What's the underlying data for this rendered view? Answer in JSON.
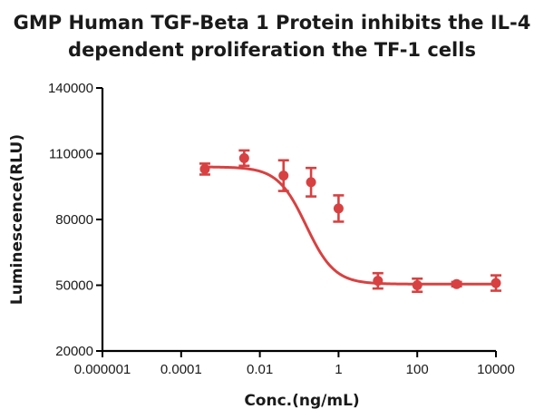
{
  "chart_data": {
    "type": "scatter",
    "title_lines": [
      "GMP Human TGF-Beta 1 Protein inhibits the IL-4",
      "dependent proliferation the TF-1 cells"
    ],
    "xlabel": "Conc.(ng/mL)",
    "ylabel": "Luminescence(RLU)",
    "x_scale": "log",
    "xlim": [
      1e-06,
      10000
    ],
    "x_ticks": [
      1e-06,
      0.0001,
      0.01,
      1,
      100,
      10000
    ],
    "x_tick_labels": [
      "0.000001",
      "0.0001",
      "0.01",
      "1",
      "100",
      "10000"
    ],
    "ylim": [
      20000,
      140000
    ],
    "y_ticks": [
      20000,
      50000,
      80000,
      110000,
      140000
    ],
    "y_tick_labels": [
      "20000",
      "50000",
      "80000",
      "110000",
      "140000"
    ],
    "color": "#d84141",
    "grid": false,
    "legend": "none",
    "series": [
      {
        "points": [
          {
            "x": 0.0004,
            "y": 103000,
            "err": 2500
          },
          {
            "x": 0.004,
            "y": 108000,
            "err": 3500
          },
          {
            "x": 0.04,
            "y": 100000,
            "err": 7000
          },
          {
            "x": 0.2,
            "y": 97000,
            "err": 6500
          },
          {
            "x": 1,
            "y": 85000,
            "err": 6000
          },
          {
            "x": 10,
            "y": 52000,
            "err": 3500
          },
          {
            "x": 100,
            "y": 50000,
            "err": 3000
          },
          {
            "x": 1000,
            "y": 50500,
            "err": 1000
          },
          {
            "x": 10000,
            "y": 51000,
            "err": 3500
          }
        ]
      }
    ],
    "fit": {
      "top": 104000,
      "bottom": 50500,
      "ic50": 0.15,
      "hill": 1.2
    }
  }
}
